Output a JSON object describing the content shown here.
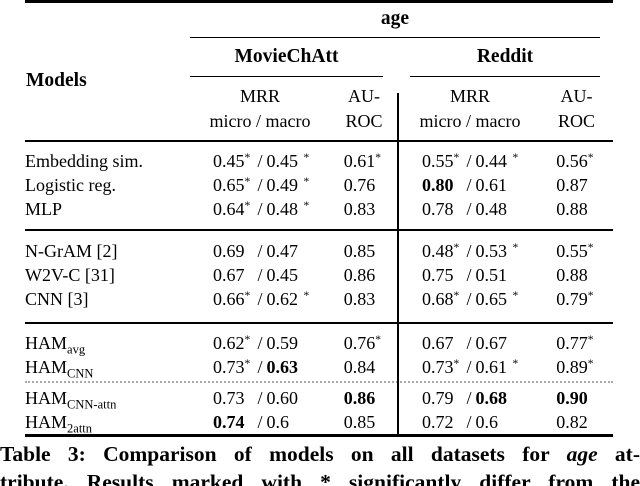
{
  "table": {
    "span_header": "age",
    "models_header": "Models",
    "datasets": [
      {
        "name": "MovieChAtt"
      },
      {
        "name": "Reddit"
      }
    ],
    "subheader": {
      "mrr": "MRR",
      "mrr_detail": "micro / macro",
      "auroc_line1": "AU-",
      "auroc_line2": "ROC"
    },
    "sep": "/",
    "sections": [
      {
        "rows": [
          {
            "m": "Embedding sim.",
            "sub": "",
            "c": [
              "0.45",
              "*",
              "0.45",
              "*",
              "0.61",
              "*",
              "0.55",
              "*",
              "0.44",
              "*",
              "0.56",
              "*"
            ]
          },
          {
            "m": "Logistic reg.",
            "sub": "",
            "c": [
              "0.65",
              "*",
              "0.49",
              "*",
              "0.76",
              "",
              "0.80",
              "",
              "0.61",
              "",
              "0.87",
              ""
            ]
          },
          {
            "m": "MLP",
            "sub": "",
            "c": [
              "0.64",
              "*",
              "0.48",
              "*",
              "0.83",
              "",
              "0.78",
              "",
              "0.48",
              "",
              "0.88",
              ""
            ]
          }
        ]
      },
      {
        "rows": [
          {
            "m": "N-GrAM [2]",
            "sub": "",
            "c": [
              "0.69",
              "",
              "0.47",
              "",
              "0.85",
              "",
              "0.48",
              "*",
              "0.53",
              "*",
              "0.55",
              "*"
            ]
          },
          {
            "m": "W2V-C [31]",
            "sub": "",
            "c": [
              "0.67",
              "",
              "0.45",
              "",
              "0.86",
              "",
              "0.75",
              "",
              "0.51",
              "",
              "0.88",
              ""
            ]
          },
          {
            "m": "CNN [3]",
            "sub": "",
            "c": [
              "0.66",
              "*",
              "0.62",
              "*",
              "0.83",
              "",
              "0.68",
              "*",
              "0.65",
              "*",
              "0.79",
              "*"
            ]
          }
        ]
      },
      {
        "rows": [
          {
            "m": "HAM",
            "sub": "avg",
            "c": [
              "0.62",
              "*",
              "0.59",
              "",
              "0.76",
              "*",
              "0.67",
              "",
              "0.67",
              "",
              "0.77",
              "*"
            ]
          },
          {
            "m": "HAM",
            "sub": "CNN",
            "c": [
              "0.73",
              "*",
              "0.63",
              "",
              "0.84",
              "",
              "0.73",
              "*",
              "0.61",
              "*",
              "0.89",
              "*"
            ]
          }
        ]
      },
      {
        "rows": [
          {
            "m": "HAM",
            "sub": "CNN-attn",
            "c": [
              "0.73",
              "",
              "0.60",
              "",
              "0.86",
              "",
              "0.79",
              "",
              "0.68",
              "",
              "0.90",
              ""
            ]
          },
          {
            "m": "HAM",
            "sub": "2attn",
            "c": [
              "0.74",
              "",
              "0.6",
              "",
              "0.85",
              "",
              "0.72",
              "",
              "0.6",
              "",
              "0.82",
              ""
            ]
          }
        ]
      }
    ]
  },
  "caption": {
    "line1_prefix": "Table 3: Comparison of models on all datasets for",
    "line1_italic": "age",
    "line1_suffix": "at-",
    "line2": "tribute. Results marked with * significantly differ from the"
  }
}
